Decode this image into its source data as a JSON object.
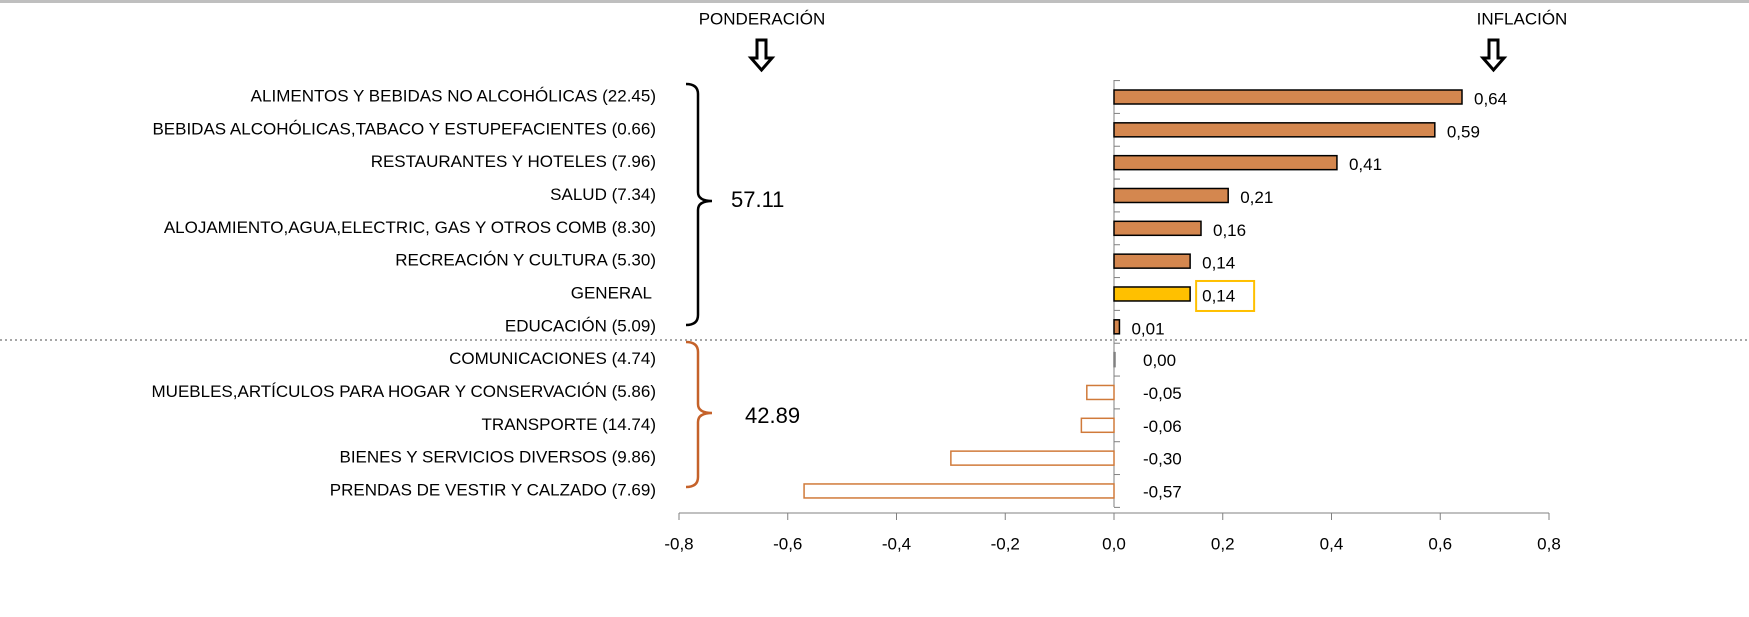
{
  "chart_data": {
    "type": "barh",
    "headers": [
      "PONDERACIÓN",
      "INFLACIÓN"
    ],
    "groups": [
      "57.11",
      "42.89"
    ],
    "group_colors": [
      "#000000",
      "#c5622a"
    ],
    "categories": [
      "ALIMENTOS Y BEBIDAS NO ALCOHÓLICAS (22.45)",
      "BEBIDAS ALCOHÓLICAS,TABACO Y ESTUPEFACIENTES (0.66)",
      "RESTAURANTES Y HOTELES (7.96)",
      "SALUD (7.34)",
      "ALOJAMIENTO,AGUA,ELECTRIC, GAS Y OTROS COMB (8.30)",
      "RECREACIÓN Y CULTURA (5.30)",
      "GENERAL",
      "EDUCACIÓN (5.09)",
      "COMUNICACIONES (4.74)",
      "MUEBLES,ARTÍCULOS PARA HOGAR Y CONSERVACIÓN (5.86)",
      "TRANSPORTE (14.74)",
      "BIENES Y SERVICIOS DIVERSOS (9.86)",
      "PRENDAS DE VESTIR Y CALZADO (7.69)"
    ],
    "values": [
      0.64,
      0.59,
      0.41,
      0.21,
      0.16,
      0.14,
      0.14,
      0.01,
      0.0,
      -0.05,
      -0.06,
      -0.3,
      -0.57
    ],
    "value_labels": [
      "0,64",
      "0,59",
      "0,41",
      "0,21",
      "0,16",
      "0,14",
      "0,14",
      "0,01",
      "0,00",
      "-0,05",
      "-0,06",
      "-0,30",
      "-0,57"
    ],
    "colors": [
      "#d4874f",
      "#d4874f",
      "#d4874f",
      "#d4874f",
      "#d4874f",
      "#d4874f",
      "#ffc000",
      "#d4874f",
      "#ffffff",
      "#ffffff",
      "#ffffff",
      "#ffffff",
      "#ffffff"
    ],
    "edge_colors": [
      "#000000",
      "#000000",
      "#000000",
      "#000000",
      "#000000",
      "#000000",
      "#000000",
      "#000000",
      "#808080",
      "#d07a3a",
      "#d07a3a",
      "#d07a3a",
      "#d07a3a"
    ],
    "label_colors": [
      "#000000",
      "#000000",
      "#000000",
      "#000000",
      "#000000",
      "#000000",
      "#000000",
      "#000000",
      "#c5622a",
      "#c5622a",
      "#c5622a",
      "#c5622a",
      "#c5622a"
    ],
    "xlim": [
      -0.8,
      0.8
    ],
    "xticks": [
      {
        "value": -0.8,
        "label": "-0,8"
      },
      {
        "value": -0.6,
        "label": "-0,6"
      },
      {
        "value": -0.4,
        "label": "-0,4"
      },
      {
        "value": -0.2,
        "label": "-0,2"
      },
      {
        "value": 0.0,
        "label": "0,0"
      },
      {
        "value": 0.2,
        "label": "0,2"
      },
      {
        "value": 0.4,
        "label": "0,4"
      },
      {
        "value": 0.6,
        "label": "0,6"
      },
      {
        "value": 0.8,
        "label": "0,8"
      }
    ]
  }
}
